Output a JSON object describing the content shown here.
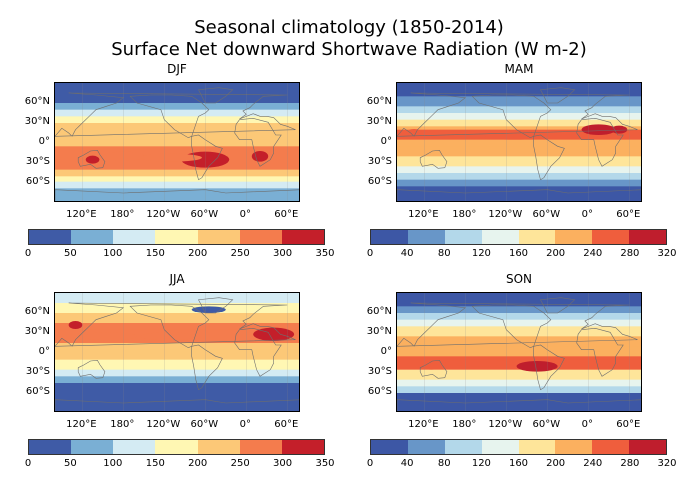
{
  "chart_data": {
    "type": "heatmap",
    "title": "Seasonal climatology  (1850-2014)",
    "subtitle": "Surface Net downward Shortwave Radiation (W m-2)",
    "panels": [
      {
        "name": "DJF",
        "lat_ticks": [
          "60°N",
          "30°N",
          "0°",
          "30°S",
          "60°S"
        ],
        "lon_ticks": [
          "120°E",
          "180°",
          "120°W",
          "60°W",
          "0°",
          "60°E"
        ],
        "levels": [
          0,
          50,
          100,
          150,
          200,
          250,
          300,
          350
        ],
        "colors": [
          "#3f5ba6",
          "#7aafd4",
          "#d4ebf3",
          "#fff7b3",
          "#fcc877",
          "#f47c4d",
          "#c41f2a"
        ],
        "pattern": "djf"
      },
      {
        "name": "MAM",
        "lat_ticks": [
          "60°N",
          "30°N",
          "0°",
          "30°S",
          "60°S"
        ],
        "lon_ticks": [
          "120°E",
          "180°",
          "120°W",
          "60°W",
          "0°",
          "60°E"
        ],
        "levels": [
          0,
          40,
          80,
          120,
          160,
          200,
          240,
          280,
          320
        ],
        "colors": [
          "#3d57a5",
          "#6896c8",
          "#b3d8ea",
          "#e7f4ee",
          "#fee59a",
          "#fbb05f",
          "#ef5e3d",
          "#bf1e2d"
        ],
        "pattern": "mam"
      },
      {
        "name": "JJA",
        "lat_ticks": [
          "60°N",
          "30°N",
          "0°",
          "30°S",
          "60°S"
        ],
        "lon_ticks": [
          "120°E",
          "180°",
          "120°W",
          "60°W",
          "0°",
          "60°E"
        ],
        "levels": [
          0,
          50,
          100,
          150,
          200,
          250,
          300,
          350
        ],
        "colors": [
          "#3f5ba6",
          "#7aafd4",
          "#d4ebf3",
          "#fff7b3",
          "#fcc877",
          "#f47c4d",
          "#c41f2a"
        ],
        "pattern": "jja"
      },
      {
        "name": "SON",
        "lat_ticks": [
          "60°N",
          "30°N",
          "0°",
          "30°S",
          "60°S"
        ],
        "lon_ticks": [
          "120°E",
          "180°",
          "120°W",
          "60°W",
          "0°",
          "60°E"
        ],
        "levels": [
          0,
          40,
          80,
          120,
          160,
          200,
          240,
          280,
          320
        ],
        "colors": [
          "#3d57a5",
          "#6896c8",
          "#b3d8ea",
          "#e7f4ee",
          "#fee59a",
          "#fbb05f",
          "#ef5e3d",
          "#bf1e2d"
        ],
        "pattern": "son"
      }
    ]
  }
}
